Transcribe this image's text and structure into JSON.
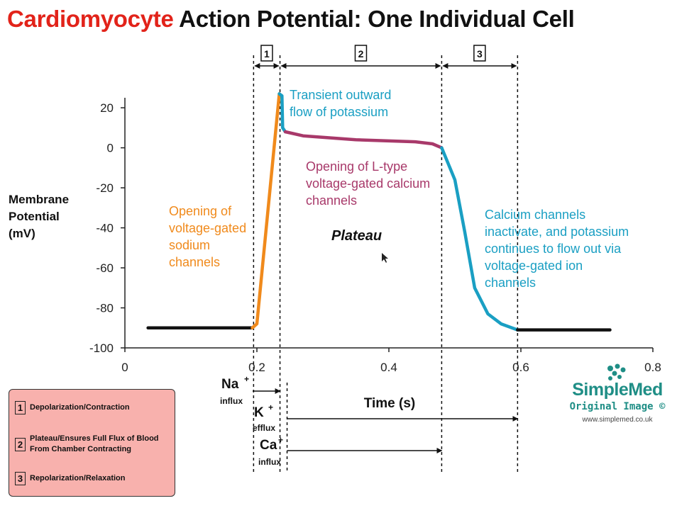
{
  "title": {
    "red_part": "Cardiomyocyte",
    "black_part": "Action Potential: One Individual Cell"
  },
  "ylabel": [
    "Membrane",
    "Potential",
    "(mV)"
  ],
  "xlabel": "Time (s)",
  "phase_labels": [
    "1",
    "2",
    "3"
  ],
  "annotations": {
    "sodium": [
      "Opening of",
      "voltage-gated",
      "sodium",
      "channels"
    ],
    "potassium_transient": [
      "Transient outward",
      "flow of potassium"
    ],
    "calcium_ltype": [
      "Opening of L-type",
      "voltage-gated calcium",
      "channels"
    ],
    "plateau": "Plateau",
    "repolarization": [
      "Calcium channels",
      "inactivate, and potassium",
      "continues to flow out via",
      "voltage-gated ion",
      "channels"
    ]
  },
  "ion_flux": [
    {
      "ion": "Na",
      "charge": "+",
      "direction": "influx"
    },
    {
      "ion": "K",
      "charge": "+",
      "direction": "efflux"
    },
    {
      "ion": "Ca",
      "charge": "+",
      "direction": "influx"
    }
  ],
  "legend": [
    {
      "num": "1",
      "text": [
        "Depolarization/Contraction"
      ]
    },
    {
      "num": "2",
      "text": [
        "Plateau/Ensures Full Flux of Blood",
        "From Chamber Contracting"
      ]
    },
    {
      "num": "3",
      "text": [
        "Repolarization/Relaxation"
      ]
    }
  ],
  "logo": {
    "name": "SimpleMed",
    "subtitle": "Original Image ©",
    "url": "www.simplemed.co.uk"
  },
  "colors": {
    "title_red": "#e2231a",
    "baseline": "#111111",
    "depolarization": "#f08a1c",
    "transient": "#1a9fc3",
    "plateau": "#a8396a",
    "repolarization": "#1a9fc3",
    "legend_bg": "#f8b1ad",
    "logo": "#1f8e86"
  },
  "chart_data": {
    "type": "line",
    "title": "Cardiomyocyte Action Potential: One Individual Cell",
    "xlabel": "Time (s)",
    "ylabel": "Membrane Potential (mV)",
    "xlim": [
      0,
      0.8
    ],
    "ylim": [
      -100,
      25
    ],
    "x_ticks": [
      0,
      0.2,
      0.4,
      0.6,
      0.8
    ],
    "x_tick_labels": [
      "0",
      "0.2",
      "0.4",
      "0.6",
      "0.8"
    ],
    "y_ticks": [
      20,
      0,
      -20,
      -40,
      -60,
      -80,
      -100
    ],
    "y_tick_labels": [
      "20",
      "0",
      "-20",
      "-40",
      "-60",
      "-80",
      "-100"
    ],
    "grid": false,
    "phase_boundaries": [
      0.195,
      0.235,
      0.48,
      0.595
    ],
    "series": [
      {
        "segment": "resting",
        "color": "#111111",
        "points": [
          [
            0.035,
            -90
          ],
          [
            0.193,
            -90
          ]
        ]
      },
      {
        "segment": "depolarization",
        "color": "#f08a1c",
        "points": [
          [
            0.193,
            -90
          ],
          [
            0.2,
            -88
          ],
          [
            0.234,
            27
          ]
        ]
      },
      {
        "segment": "transient",
        "color": "#1a9fc3",
        "points": [
          [
            0.234,
            27
          ],
          [
            0.238,
            26
          ],
          [
            0.239,
            10
          ],
          [
            0.243,
            8
          ]
        ]
      },
      {
        "segment": "plateau",
        "color": "#a8396a",
        "points": [
          [
            0.243,
            8
          ],
          [
            0.27,
            6
          ],
          [
            0.35,
            4
          ],
          [
            0.44,
            3
          ],
          [
            0.466,
            2
          ],
          [
            0.48,
            0
          ]
        ]
      },
      {
        "segment": "repolarization",
        "color": "#1a9fc3",
        "points": [
          [
            0.48,
            0
          ],
          [
            0.5,
            -16
          ],
          [
            0.515,
            -42
          ],
          [
            0.53,
            -70
          ],
          [
            0.55,
            -83
          ],
          [
            0.57,
            -88
          ],
          [
            0.595,
            -91
          ]
        ]
      },
      {
        "segment": "resting",
        "color": "#111111",
        "points": [
          [
            0.595,
            -91
          ],
          [
            0.735,
            -91
          ]
        ]
      }
    ]
  }
}
